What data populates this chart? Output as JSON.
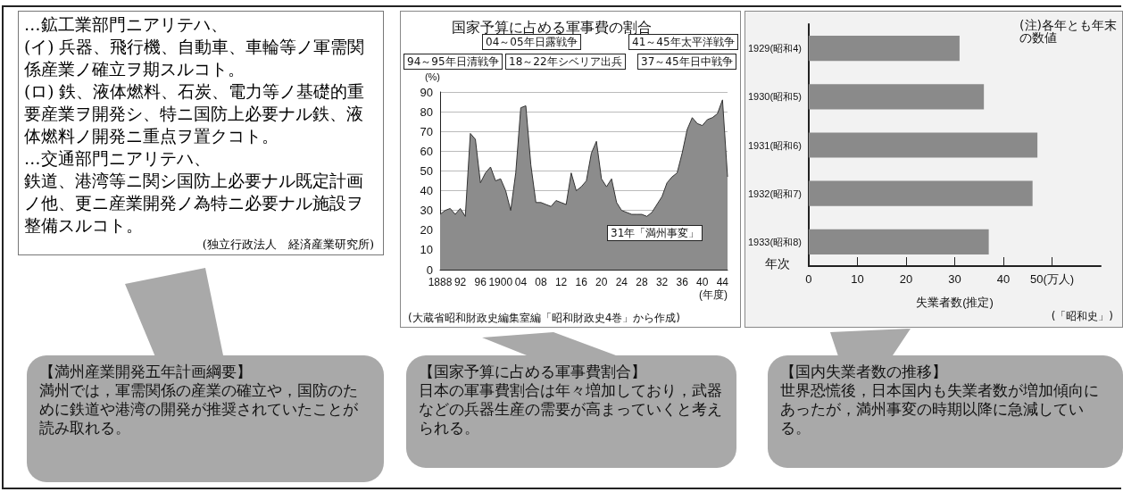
{
  "chart_data": [
    {
      "type": "other",
      "annotations": [
        "…鉱工業部門ニアリテハ、",
        "(イ) 兵器、飛行機、自動車、車輪等ノ軍需関係産業ノ確立ヲ期スルコト。",
        "(ロ) 鉄、液体燃料、石炭、電力等ノ基礎的重要産業ヲ開発シ、特ニ国防上必要ナル鉄、液体燃料ノ開発ニ重点ヲ置クコト。",
        "…交通部門ニアリテハ、",
        "鉄道、港湾等ニ関シ国防上必要ナル既定計画ノ他、更ニ産業開発ノ為特ニ必要ナル施設ヲ整備スルコト。",
        "(独立行政法人　経済産業研究所)",
        "【満州産業開発五年計画綱要】",
        "満州では，軍需関係の産業の確立や，国防のために鉄道や港湾の開発が推奨されていたことが読み取れる。"
      ]
    },
    {
      "type": "area",
      "title": "国家予算に占める軍事費の割合",
      "ylabel": "(%)",
      "xlabel": "(年度)",
      "color": "#8c8c8c",
      "x": [
        1888,
        1889,
        1890,
        1891,
        1892,
        1893,
        1894,
        1895,
        1896,
        1897,
        1898,
        1899,
        1900,
        1901,
        1902,
        1903,
        1904,
        1905,
        1906,
        1907,
        1908,
        1909,
        1910,
        1911,
        1912,
        1913,
        1914,
        1915,
        1916,
        1917,
        1918,
        1919,
        1920,
        1921,
        1922,
        1923,
        1924,
        1925,
        1926,
        1927,
        1928,
        1929,
        1930,
        1931,
        1932,
        1933,
        1934,
        1935,
        1936,
        1937,
        1938,
        1939,
        1940,
        1941,
        1942,
        1943,
        1944,
        1945
      ],
      "values": [
        28,
        30,
        31,
        28,
        31,
        27,
        69,
        66,
        44,
        49,
        52,
        45,
        46,
        40,
        30,
        49,
        82,
        83,
        53,
        34,
        34,
        33,
        32,
        35,
        34,
        33,
        49,
        40,
        42,
        45,
        59,
        65,
        46,
        42,
        46,
        34,
        30,
        29,
        28,
        28,
        28,
        27,
        29,
        33,
        37,
        44,
        47,
        49,
        59,
        71,
        77,
        74,
        73,
        76,
        77,
        79,
        86,
        47
      ],
      "xlim": [
        1888,
        1945
      ],
      "xticks": [
        {
          "value": 1888,
          "label": "1888"
        },
        {
          "value": 1892,
          "label": "92"
        },
        {
          "value": 1896,
          "label": "96"
        },
        {
          "value": 1900,
          "label": "1900"
        },
        {
          "value": 1904,
          "label": "04"
        },
        {
          "value": 1908,
          "label": "08"
        },
        {
          "value": 1912,
          "label": "12"
        },
        {
          "value": 1916,
          "label": "16"
        },
        {
          "value": 1920,
          "label": "20"
        },
        {
          "value": 1924,
          "label": "24"
        },
        {
          "value": 1928,
          "label": "28"
        },
        {
          "value": 1932,
          "label": "32"
        },
        {
          "value": 1936,
          "label": "36"
        },
        {
          "value": 1940,
          "label": "40"
        },
        {
          "value": 1944,
          "label": "44"
        }
      ],
      "ylim": [
        0,
        90
      ],
      "yticks": [
        0,
        10,
        20,
        30,
        40,
        50,
        60,
        70,
        80,
        90
      ],
      "grid": "y",
      "marker": "none",
      "annotations": [
        "94～95年日清戦争",
        "04～05年日露戦争",
        "18～22年シベリア出兵",
        "31年「満州事変」",
        "37～45年日中戦争",
        "41～45年太平洋戦争",
        "(大蔵省昭和財政史編集室編「昭和財政史4巻」から作成)",
        "【国家予算に占める軍事費割合】",
        "日本の軍事費割合は年々増加しており，武器などの兵器生産の需要が高まっていくと考えられる。"
      ]
    },
    {
      "type": "bar",
      "orientation": "horizontal",
      "color": "#8a8a8a",
      "ylabel": "年次",
      "xlabel": "失業者数(推定)",
      "categories": [
        "1929(昭和4)",
        "1930(昭和5)",
        "1931(昭和6)",
        "1932(昭和7)",
        "1933(昭和8)"
      ],
      "values": [
        31,
        36,
        47,
        46,
        37
      ],
      "xlim": [
        0,
        60
      ],
      "xticks": [
        0,
        10,
        20,
        30,
        40,
        {
          "value": 50,
          "label": "50(万人)"
        }
      ],
      "grid": false,
      "annotations": [
        "(注)各年とも年末の数値",
        "(「昭和史」)",
        "【国内失業者数の推移】",
        "世界恐慌後，日本国内も失業者数が増加傾向にあったが，満州事変の時期以降に急減している。"
      ]
    }
  ]
}
